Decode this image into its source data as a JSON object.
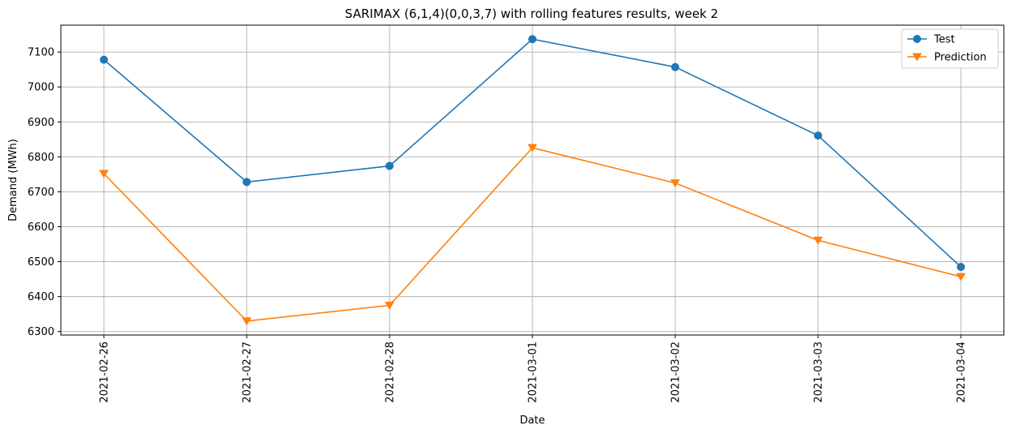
{
  "chart_data": {
    "type": "line",
    "title": "SARIMAX (6,1,4)(0,0,3,7) with rolling features results, week 2",
    "xlabel": "Date",
    "ylabel": "Demand (MWh)",
    "categories": [
      "2021-02-26",
      "2021-02-27",
      "2021-02-28",
      "2021-03-01",
      "2021-03-02",
      "2021-03-03",
      "2021-03-04"
    ],
    "yticks": [
      6300,
      6400,
      6500,
      6600,
      6700,
      6800,
      6900,
      7000,
      7100
    ],
    "ylim": [
      6290,
      7177
    ],
    "grid": true,
    "legend_position": "top-right",
    "series": [
      {
        "name": "Test",
        "color": "#1f77b4",
        "marker": "circle",
        "values": [
          7078,
          6728,
          6774,
          7137,
          7057,
          6861,
          6485
        ]
      },
      {
        "name": "Prediction",
        "color": "#ff7f0e",
        "marker": "triangle-down",
        "values": [
          6752,
          6330,
          6375,
          6826,
          6725,
          6561,
          6457
        ]
      }
    ]
  }
}
